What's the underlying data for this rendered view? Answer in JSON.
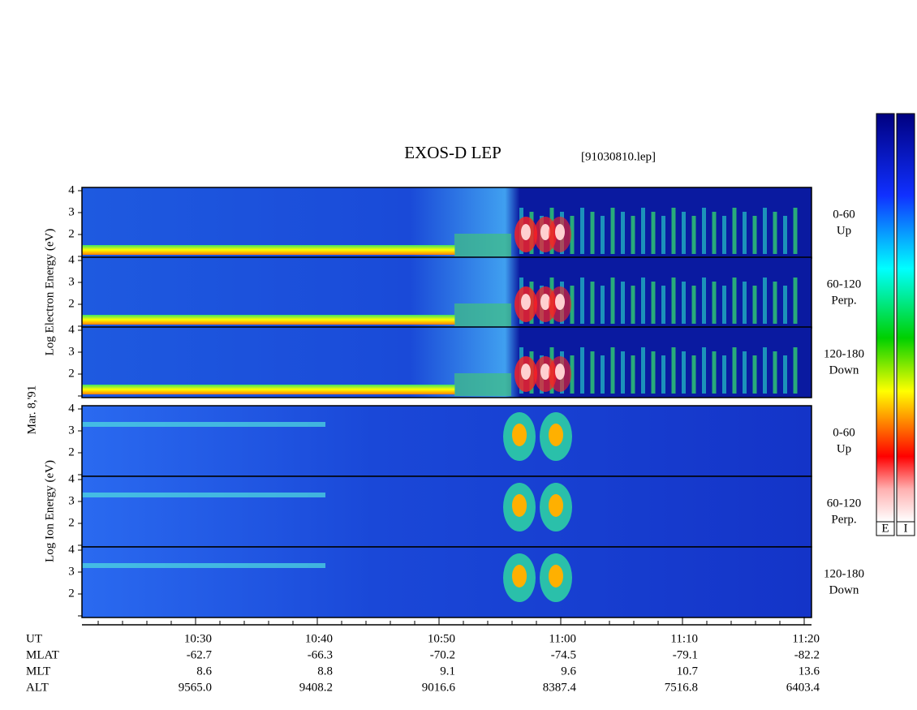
{
  "title": "EXOS-D LEP",
  "file": "[91030810.lep]",
  "electron_label": "Log Electron Energy (eV)",
  "date": "Mar. 8,'91",
  "ion_label": "Log Ion Energy (eV)",
  "electron_panels": [
    {
      "range": "0-60",
      "direction": "Up"
    },
    {
      "range": "60-120",
      "direction": "Perp."
    },
    {
      "range": "120-180",
      "direction": "Down"
    }
  ],
  "ion_panels": [
    {
      "range": "0-60",
      "direction": "Up"
    },
    {
      "range": "60-120",
      "direction": "Perp."
    },
    {
      "range": "120-180",
      "direction": "Down"
    }
  ],
  "yticks": [
    "2",
    "3",
    "4"
  ],
  "colorbar_labels": [
    "E",
    "I"
  ],
  "rows": [
    {
      "name": "UT",
      "values": [
        "10:30",
        "10:40",
        "10:50",
        "11:00",
        "11:10",
        "11:20"
      ]
    },
    {
      "name": "MLAT",
      "values": [
        "-62.7",
        "-66.3",
        "-70.2",
        "-74.5",
        "-79.1",
        "-82.2"
      ]
    },
    {
      "name": "MLT",
      "values": [
        "8.6",
        "8.8",
        "9.1",
        "9.6",
        "10.7",
        "13.6"
      ]
    },
    {
      "name": "ALT",
      "values": [
        "9565.0",
        "9408.2",
        "9016.6",
        "8387.4",
        "7516.8",
        "6403.4"
      ]
    }
  ]
}
